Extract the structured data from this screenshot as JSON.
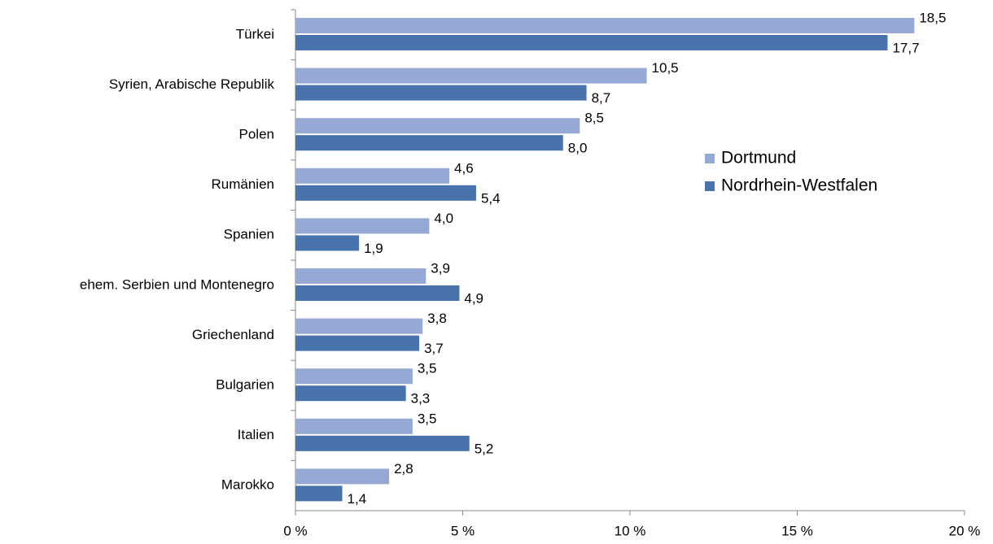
{
  "chart_data": {
    "type": "hbar",
    "categories": [
      "Türkei",
      "Syrien, Arabische Republik",
      "Polen",
      "Rumänien",
      "Spanien",
      "ehem. Serbien und Montenegro",
      "Griechenland",
      "Bulgarien",
      "Italien",
      "Marokko"
    ],
    "series": [
      {
        "name": "Dortmund",
        "color": "#95a9d4",
        "values": [
          18.5,
          10.5,
          8.5,
          4.6,
          4.0,
          3.9,
          3.8,
          3.5,
          3.5,
          2.8
        ],
        "value_labels": [
          "18,5",
          "10,5",
          "8,5",
          "4,6",
          "4,0",
          "3,9",
          "3,8",
          "3,5",
          "3,5",
          "2,8"
        ]
      },
      {
        "name": "Nordrhein-Westfalen",
        "color": "#4873ad",
        "values": [
          17.7,
          8.7,
          8.0,
          5.4,
          1.9,
          4.9,
          3.7,
          3.3,
          5.2,
          1.4
        ],
        "value_labels": [
          "17,7",
          "8,7",
          "8,0",
          "5,4",
          "1,9",
          "4,9",
          "3,7",
          "3,3",
          "5,2",
          "1,4"
        ]
      }
    ],
    "xlim": [
      0,
      20
    ],
    "xticks": [
      {
        "value": 0,
        "label": "0 %"
      },
      {
        "value": 5,
        "label": "5 %"
      },
      {
        "value": 10,
        "label": "10 %"
      },
      {
        "value": 15,
        "label": "15 %"
      },
      {
        "value": 20,
        "label": "20 %"
      }
    ],
    "legend": "right"
  }
}
